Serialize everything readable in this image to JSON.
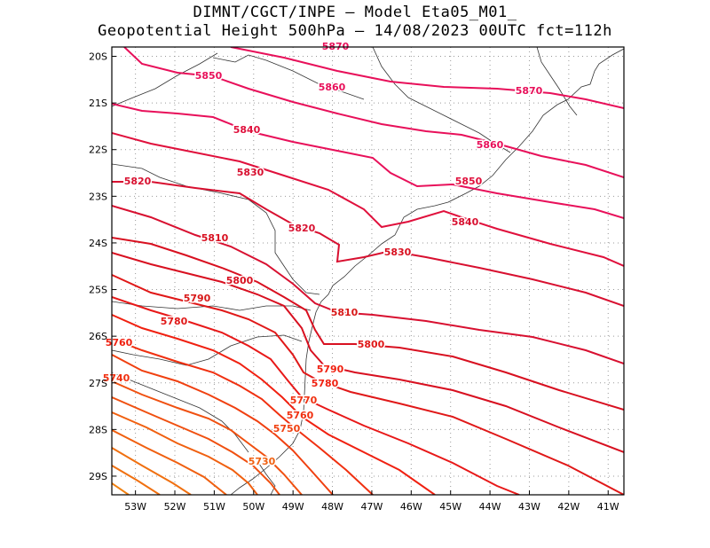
{
  "title": {
    "line1": "DIMNT/CGCT/INPE –  Model Eta05_M01_",
    "line2": "Geopotential Height 500hPa –  14/08/2023 00UTC fct=112h"
  },
  "map": {
    "lat_labels": [
      "20S",
      "21S",
      "22S",
      "23S",
      "24S",
      "25S",
      "26S",
      "27S",
      "28S",
      "29S"
    ],
    "lon_labels": [
      "53W",
      "52W",
      "51W",
      "50W",
      "49W",
      "48W",
      "47W",
      "46W",
      "45W",
      "44W",
      "43W",
      "42W",
      "41W"
    ],
    "lat_range": [
      -29.4,
      -19.8
    ],
    "lon_range": [
      -53.6,
      -40.6
    ],
    "contour_colors": {
      "5870": "#e8105a",
      "5860": "#e8105a",
      "5850": "#e8105a",
      "5840": "#e0103c",
      "5830": "#d81030",
      "5820": "#d81030",
      "5810": "#d81020",
      "5800": "#d81020",
      "5790": "#e01818",
      "5780": "#e81818",
      "5770": "#f02010",
      "5760": "#f03010",
      "5750": "#f04010",
      "5740": "#f05010",
      "5730": "#f06010"
    },
    "contour_labels": [
      {
        "text": "5870",
        "color": "#e8105a"
      },
      {
        "text": "5870",
        "color": "#e8105a"
      },
      {
        "text": "5850",
        "color": "#e8105a"
      },
      {
        "text": "5860",
        "color": "#e8105a"
      },
      {
        "text": "5860",
        "color": "#e8105a"
      },
      {
        "text": "5840",
        "color": "#e0103c"
      },
      {
        "text": "5850",
        "color": "#e0103c"
      },
      {
        "text": "5830",
        "color": "#d81030"
      },
      {
        "text": "5840",
        "color": "#d81030"
      },
      {
        "text": "5820",
        "color": "#d81030"
      },
      {
        "text": "5820",
        "color": "#d81030"
      },
      {
        "text": "5810",
        "color": "#d81020"
      },
      {
        "text": "5830",
        "color": "#d81020"
      },
      {
        "text": "5800",
        "color": "#d81020"
      },
      {
        "text": "5790",
        "color": "#d81818"
      },
      {
        "text": "5810",
        "color": "#d81818"
      },
      {
        "text": "5780",
        "color": "#e01818"
      },
      {
        "text": "5800",
        "color": "#e01818"
      },
      {
        "text": "5760",
        "color": "#f02010"
      },
      {
        "text": "5790",
        "color": "#f02010"
      },
      {
        "text": "5740",
        "color": "#f03010"
      },
      {
        "text": "5780",
        "color": "#f02010"
      },
      {
        "text": "5770",
        "color": "#f03010"
      },
      {
        "text": "5760",
        "color": "#f03010"
      },
      {
        "text": "5750",
        "color": "#f04010"
      },
      {
        "text": "5730",
        "color": "#f06010"
      }
    ]
  }
}
